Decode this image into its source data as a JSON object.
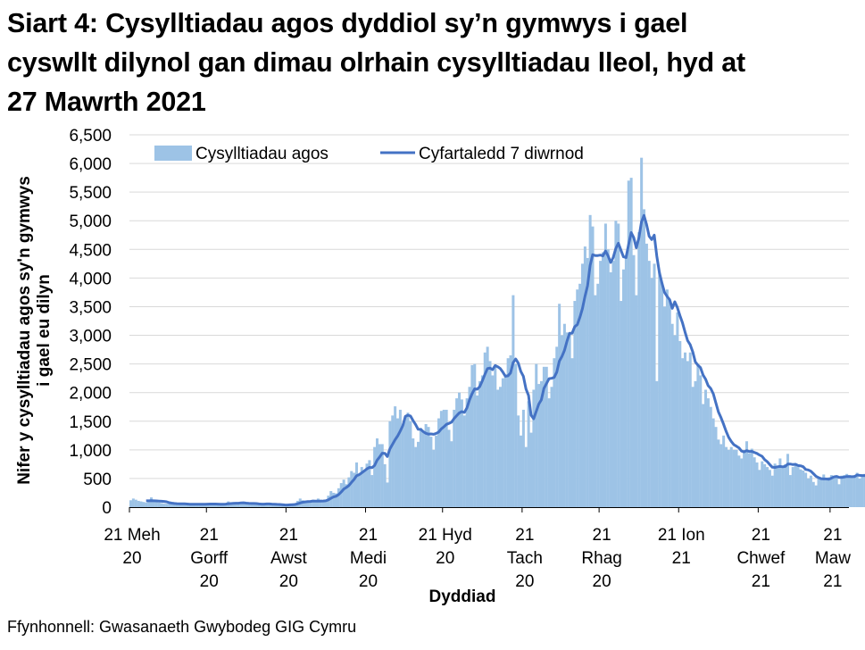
{
  "title_lines": [
    "Siart 4: Cysylltiadau agos dyddiol sy’n gymwys i gael",
    "cyswllt dilynol gan dimau olrhain cysylltiadau lleol, hyd at",
    "27 Mawrth 2021"
  ],
  "source": "Ffynhonnell: Gwasanaeth Gwybodeg GIG Cymru",
  "colors": {
    "bars": "#9DC3E6",
    "line": "#4472C4",
    "grid": "#D9D9D9",
    "axis": "#000000"
  },
  "chart_data": {
    "type": "bar",
    "title": "Siart 4: Cysylltiadau agos dyddiol sy’n gymwys i gael cyswllt dilynol gan dimau olrhain cysylltiadau lleol, hyd at 27 Mawrth 2021",
    "xlabel": "Dyddiad",
    "ylabel_lines": [
      "Nifer y cysylltiadau agos sy'n gymwys",
      "i gael eu dilyn"
    ],
    "ylim": [
      0,
      6500
    ],
    "yticks": [
      0,
      500,
      1000,
      1500,
      2000,
      2500,
      3000,
      3500,
      4000,
      4500,
      5000,
      5500,
      6000,
      6500
    ],
    "ytick_labels": [
      "0",
      "500",
      "1,000",
      "1,500",
      "2,000",
      "2,500",
      "3,000",
      "3,500",
      "4,000",
      "4,500",
      "5,000",
      "5,500",
      "6,000",
      "6,500"
    ],
    "grid": true,
    "legend_position": "top-left-inside",
    "start_date": "2020-06-21",
    "end_date": "2021-03-27",
    "xticks": [
      {
        "day": 0,
        "lines": [
          "21 Meh",
          "20"
        ]
      },
      {
        "day": 30,
        "lines": [
          "21",
          "Gorff",
          "20"
        ]
      },
      {
        "day": 61,
        "lines": [
          "21",
          "Awst",
          "20"
        ]
      },
      {
        "day": 92,
        "lines": [
          "21",
          "Medi",
          "20"
        ]
      },
      {
        "day": 122,
        "lines": [
          "21 Hyd",
          "20"
        ]
      },
      {
        "day": 153,
        "lines": [
          "21",
          "Tach",
          "20"
        ]
      },
      {
        "day": 183,
        "lines": [
          "21",
          "Rhag",
          "20"
        ]
      },
      {
        "day": 214,
        "lines": [
          "21 Ion",
          "21"
        ]
      },
      {
        "day": 245,
        "lines": [
          "21",
          "Chwef",
          "21"
        ]
      },
      {
        "day": 273,
        "lines": [
          "21",
          "Maw",
          "21"
        ]
      }
    ],
    "series": [
      {
        "name": "Cysylltiadau agos",
        "type": "bar",
        "values": [
          120,
          150,
          130,
          110,
          100,
          90,
          80,
          110,
          170,
          120,
          90,
          80,
          70,
          60,
          60,
          70,
          60,
          50,
          60,
          55,
          50,
          55,
          50,
          45,
          50,
          55,
          50,
          55,
          60,
          50,
          50,
          60,
          55,
          50,
          45,
          50,
          55,
          60,
          100,
          80,
          70,
          60,
          60,
          90,
          70,
          60,
          50,
          60,
          55,
          50,
          45,
          50,
          60,
          70,
          60,
          40,
          30,
          30,
          35,
          40,
          40,
          50,
          55,
          60,
          50,
          110,
          150,
          120,
          100,
          90,
          80,
          100,
          90,
          150,
          130,
          110,
          120,
          200,
          280,
          250,
          240,
          330,
          420,
          480,
          400,
          520,
          630,
          600,
          780,
          560,
          700,
          640,
          760,
          820,
          560,
          1050,
          1200,
          1100,
          1100,
          750,
          430,
          1500,
          1600,
          1760,
          1550,
          1700,
          1400,
          1580,
          1650,
          1500,
          1200,
          1050,
          1140,
          1380,
          1300,
          1450,
          1400,
          1230,
          1000,
          1250,
          1550,
          1680,
          1700,
          1700,
          1350,
          1150,
          1700,
          1900,
          2000,
          1880,
          1600,
          1900,
          2100,
          2480,
          2500,
          1950,
          2200,
          2300,
          2700,
          2800,
          2550,
          2300,
          2450,
          2050,
          2100,
          2250,
          2300,
          2600,
          2650,
          3700,
          2500,
          1600,
          1250,
          1700,
          1050,
          1850,
          1300,
          2050,
          2500,
          2150,
          2200,
          2450,
          2450,
          1900,
          2100,
          2600,
          2800,
          3550,
          3000,
          3200,
          3050,
          3050,
          2600,
          3600,
          3800,
          3900,
          4250,
          4550,
          4350,
          5100,
          4900,
          3700,
          3900,
          4300,
          4450,
          4950,
          4500,
          4100,
          4300,
          5000,
          4950,
          3600,
          4150,
          4400,
          5700,
          5750,
          4400,
          3700,
          4800,
          6100,
          5200,
          4600,
          4300,
          4000,
          4250,
          2200,
          4100,
          3900,
          3500,
          3800,
          3600,
          3200,
          3000,
          3400,
          2900,
          2600,
          2700,
          2550,
          2700,
          2100,
          2200,
          2500,
          2300,
          1800,
          2050,
          1900,
          1750,
          1550,
          1400,
          1180,
          1100,
          1250,
          1050,
          1000,
          1050,
          1000,
          1000,
          900,
          850,
          960,
          1150,
          940,
          1020,
          870,
          780,
          650,
          800,
          750,
          700,
          650,
          550,
          760,
          720,
          850,
          700,
          750,
          930,
          560,
          700,
          750,
          700,
          660,
          640,
          600,
          500,
          550,
          440,
          380,
          500,
          510,
          570,
          500,
          520,
          560,
          540,
          550,
          400,
          550,
          560,
          580,
          560,
          520,
          560,
          600,
          500,
          540,
          580,
          600,
          490,
          560,
          540,
          560,
          580,
          510,
          470,
          620,
          960,
          760
        ]
      },
      {
        "name": "Cyfartaledd 7 diwrnod",
        "type": "line",
        "note": "7-day rolling average of daily values"
      }
    ]
  }
}
